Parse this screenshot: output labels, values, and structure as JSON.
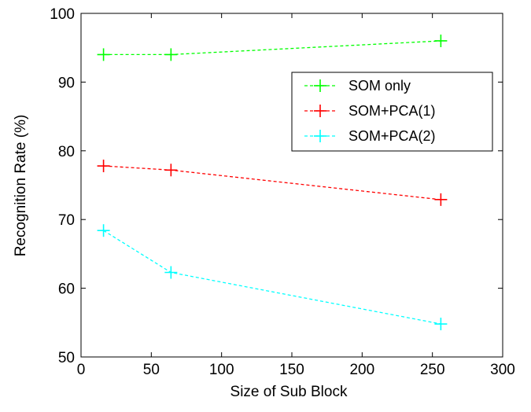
{
  "chart_data": {
    "type": "line",
    "title": "",
    "xlabel": "Size of Sub Block",
    "ylabel": "Recognition Rate (%)",
    "xlim": [
      0,
      300
    ],
    "ylim": [
      50,
      100
    ],
    "xticks": [
      0,
      50,
      100,
      150,
      200,
      250,
      300
    ],
    "yticks": [
      50,
      60,
      70,
      80,
      90,
      100
    ],
    "grid": false,
    "legend_position": "upper-right",
    "x": [
      16,
      64,
      256
    ],
    "series": [
      {
        "name": "SOM only",
        "color": "#00ff00",
        "line_style": "dashed",
        "marker": "plus",
        "values": [
          94.0,
          94.0,
          96.0
        ]
      },
      {
        "name": "SOM+PCA(1)",
        "color": "#ff0000",
        "line_style": "dashed",
        "marker": "plus",
        "values": [
          77.8,
          77.2,
          72.9
        ]
      },
      {
        "name": "SOM+PCA(2)",
        "color": "#00ffff",
        "line_style": "dashed",
        "marker": "plus",
        "values": [
          68.4,
          62.3,
          54.8
        ]
      }
    ]
  }
}
